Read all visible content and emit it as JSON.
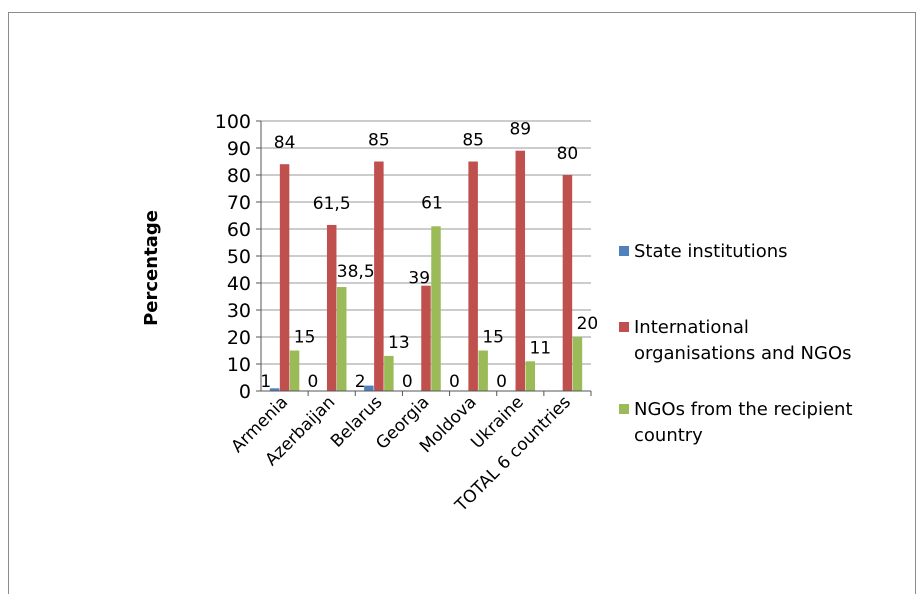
{
  "chart_data": {
    "type": "bar",
    "title": "",
    "xlabel": "",
    "ylabel": "Percentage",
    "ylim": [
      0,
      100
    ],
    "yticks": [
      0,
      10,
      20,
      30,
      40,
      50,
      60,
      70,
      80,
      90,
      100
    ],
    "grid": true,
    "legend_position": "right",
    "categories": [
      "Armenia",
      "Azerbaijan",
      "Belarus",
      "Georgia",
      "Moldova",
      "Ukraine",
      "TOTAL 6 countries"
    ],
    "series": [
      {
        "name": "State institutions",
        "color": "#4f81bd",
        "values": [
          1,
          0,
          2,
          0,
          0,
          0,
          null
        ],
        "labels": [
          "1",
          "0",
          "2",
          "0",
          "0",
          "0",
          ""
        ]
      },
      {
        "name": "International organisations and NGOs",
        "color": "#c0504d",
        "values": [
          84,
          61.5,
          85,
          39,
          85,
          89,
          80
        ],
        "labels": [
          "84",
          "61,5",
          "85",
          "39",
          "85",
          "89",
          "80"
        ]
      },
      {
        "name": "NGOs from the recipient country",
        "color": "#9bbb59",
        "values": [
          15,
          38.5,
          13,
          61,
          15,
          11,
          20
        ],
        "labels": [
          "15",
          "38,5",
          "13",
          "61",
          "15",
          "11",
          "20"
        ]
      }
    ]
  }
}
